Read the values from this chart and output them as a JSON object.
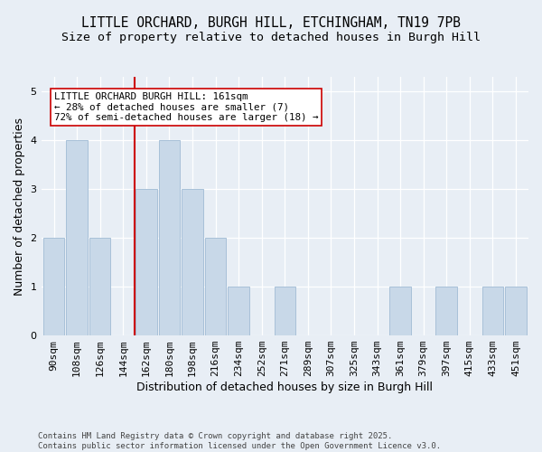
{
  "title_line1": "LITTLE ORCHARD, BURGH HILL, ETCHINGHAM, TN19 7PB",
  "title_line2": "Size of property relative to detached houses in Burgh Hill",
  "xlabel": "Distribution of detached houses by size in Burgh Hill",
  "ylabel": "Number of detached properties",
  "categories": [
    "90sqm",
    "108sqm",
    "126sqm",
    "144sqm",
    "162sqm",
    "180sqm",
    "198sqm",
    "216sqm",
    "234sqm",
    "252sqm",
    "271sqm",
    "289sqm",
    "307sqm",
    "325sqm",
    "343sqm",
    "361sqm",
    "379sqm",
    "397sqm",
    "415sqm",
    "433sqm",
    "451sqm"
  ],
  "values": [
    2,
    4,
    2,
    0,
    3,
    4,
    3,
    2,
    1,
    0,
    1,
    0,
    0,
    0,
    0,
    1,
    0,
    1,
    0,
    1,
    1
  ],
  "bar_color": "#c8d8e8",
  "bar_edgecolor": "#a8c0d8",
  "vline_x_index": 4,
  "vline_color": "#cc0000",
  "annotation_text": "LITTLE ORCHARD BURGH HILL: 161sqm\n← 28% of detached houses are smaller (7)\n72% of semi-detached houses are larger (18) →",
  "annotation_box_facecolor": "#ffffff",
  "annotation_box_edgecolor": "#cc0000",
  "ylim": [
    0,
    5.3
  ],
  "yticks": [
    0,
    1,
    2,
    3,
    4,
    5
  ],
  "background_color": "#e8eef5",
  "plot_background_color": "#e8eef5",
  "footnote": "Contains HM Land Registry data © Crown copyright and database right 2025.\nContains public sector information licensed under the Open Government Licence v3.0.",
  "title_fontsize": 10.5,
  "subtitle_fontsize": 9.5,
  "axis_label_fontsize": 9,
  "tick_fontsize": 8,
  "annotation_fontsize": 7.8,
  "footnote_fontsize": 6.5,
  "grid_color": "#ffffff"
}
